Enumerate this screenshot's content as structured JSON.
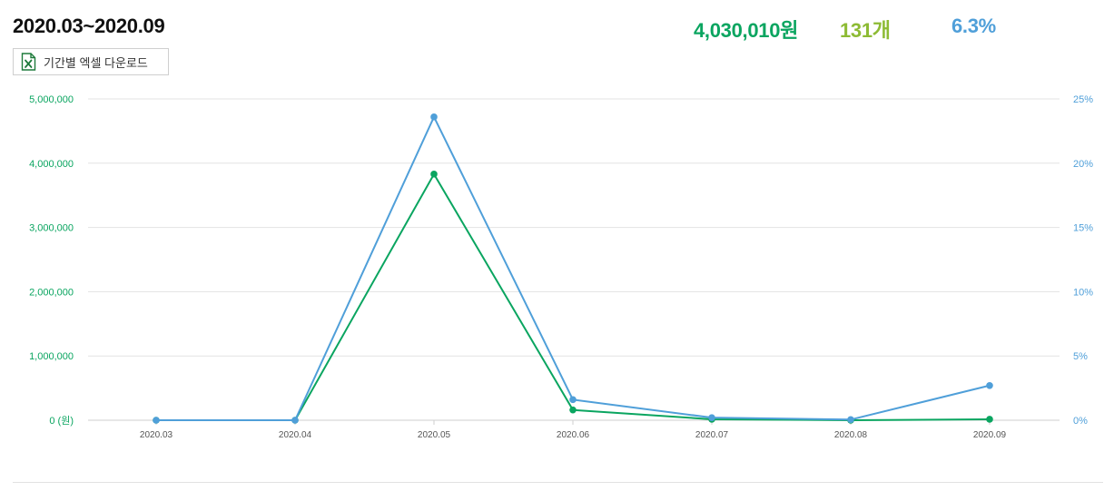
{
  "header": {
    "period": "2020.03~2020.09",
    "total_amount": "4,030,010원",
    "total_count": "131개",
    "rate": "6.3%",
    "excel_button_label": "기간별 엑셀 다운로드",
    "excel_icon": "excel-file-icon"
  },
  "colors": {
    "amount": "#0aa560",
    "count": "#8dbb34",
    "rate": "#4f9fd9",
    "grid": "#e3e3e3"
  },
  "chart_data": {
    "type": "line",
    "categories": [
      "2020.03",
      "2020.04",
      "2020.05",
      "2020.06",
      "2020.07",
      "2020.08",
      "2020.09"
    ],
    "y_left": {
      "ticks": [
        "0 (원)",
        "1,000,000",
        "2,000,000",
        "3,000,000",
        "4,000,000",
        "5,000,000"
      ],
      "ylim": [
        0,
        5000000
      ]
    },
    "y_right": {
      "ticks": [
        "0%",
        "5%",
        "10%",
        "15%",
        "20%",
        "25%"
      ],
      "ylim": [
        0,
        25
      ]
    },
    "series": [
      {
        "axis": "left",
        "color": "#0aa560",
        "values": [
          0,
          0,
          3830000,
          160000,
          15000,
          0,
          15000
        ]
      },
      {
        "axis": "right",
        "color": "#4f9fd9",
        "values": [
          0,
          0,
          23.6,
          1.6,
          0.2,
          0.05,
          2.7
        ]
      }
    ],
    "grid": true
  }
}
